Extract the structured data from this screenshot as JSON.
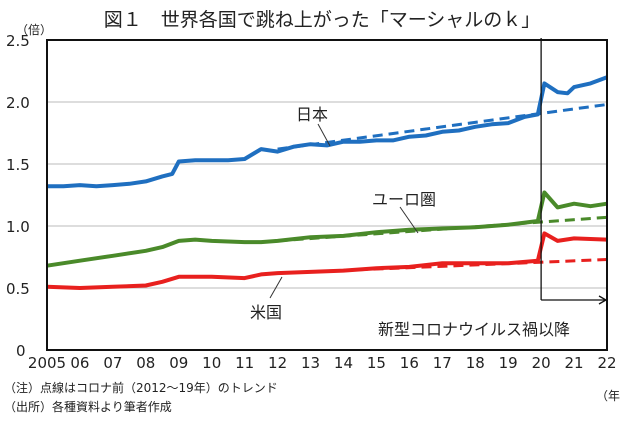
{
  "chart_data": {
    "type": "line",
    "title": "図１　世界各国で跳ね上がった「マーシャルのｋ」",
    "ylabel": "（倍）",
    "xlabel": "（年）",
    "ylim": [
      0,
      2.5
    ],
    "xlim": [
      2005,
      2022
    ],
    "yticks": [
      "0",
      "0.5",
      "1.0",
      "1.5",
      "2.0",
      "2.5"
    ],
    "yticks_values": [
      0,
      0.5,
      1.0,
      1.5,
      2.0,
      2.5
    ],
    "xticks": [
      "2005",
      "06",
      "07",
      "08",
      "09",
      "10",
      "11",
      "12",
      "13",
      "14",
      "15",
      "16",
      "17",
      "18",
      "19",
      "20",
      "21",
      "22"
    ],
    "grid": true,
    "annotation": "新型コロナウイルス禍以降",
    "annotation_x": 2020,
    "series": [
      {
        "name": "日本",
        "color": "#1f6fc0",
        "x": [
          2005,
          2005.5,
          2006,
          2006.5,
          2007,
          2007.5,
          2008,
          2008.5,
          2008.8,
          2009,
          2009.5,
          2010,
          2010.5,
          2011,
          2011.5,
          2012,
          2012.5,
          2013,
          2013.5,
          2014,
          2014.5,
          2015,
          2015.5,
          2016,
          2016.5,
          2017,
          2017.5,
          2018,
          2018.5,
          2019,
          2019.5,
          2019.9,
          2020.1,
          2020.5,
          2020.8,
          2021,
          2021.5,
          2022
        ],
        "y": [
          1.32,
          1.32,
          1.33,
          1.32,
          1.33,
          1.34,
          1.36,
          1.4,
          1.42,
          1.52,
          1.53,
          1.53,
          1.53,
          1.54,
          1.62,
          1.6,
          1.64,
          1.66,
          1.65,
          1.68,
          1.68,
          1.69,
          1.69,
          1.72,
          1.73,
          1.76,
          1.77,
          1.8,
          1.82,
          1.83,
          1.88,
          1.9,
          2.15,
          2.08,
          2.07,
          2.12,
          2.15,
          2.2
        ]
      },
      {
        "name": "ユーロ圏",
        "color": "#4a8a2a",
        "x": [
          2005,
          2006,
          2007,
          2008,
          2008.5,
          2009,
          2009.5,
          2010,
          2011,
          2011.5,
          2012,
          2013,
          2014,
          2015,
          2016,
          2017,
          2018,
          2019,
          2019.9,
          2020.1,
          2020.5,
          2021,
          2021.5,
          2022
        ],
        "y": [
          0.68,
          0.72,
          0.76,
          0.8,
          0.83,
          0.88,
          0.89,
          0.88,
          0.87,
          0.87,
          0.88,
          0.91,
          0.92,
          0.95,
          0.97,
          0.98,
          0.99,
          1.01,
          1.04,
          1.27,
          1.15,
          1.18,
          1.16,
          1.18
        ]
      },
      {
        "name": "米国",
        "color": "#e8201e",
        "x": [
          2005,
          2006,
          2007,
          2008,
          2008.5,
          2009,
          2010,
          2011,
          2011.5,
          2012,
          2013,
          2014,
          2015,
          2016,
          2017,
          2018,
          2019,
          2019.9,
          2020.1,
          2020.5,
          2021,
          2022
        ],
        "y": [
          0.51,
          0.5,
          0.51,
          0.52,
          0.55,
          0.59,
          0.59,
          0.58,
          0.61,
          0.62,
          0.63,
          0.64,
          0.66,
          0.67,
          0.7,
          0.7,
          0.7,
          0.72,
          0.94,
          0.88,
          0.9,
          0.89
        ]
      }
    ],
    "trends": [
      {
        "series": "日本",
        "x": [
          2012,
          2022
        ],
        "y": [
          1.62,
          1.98
        ]
      },
      {
        "series": "ユーロ圏",
        "x": [
          2012,
          2022
        ],
        "y": [
          0.88,
          1.07
        ]
      },
      {
        "series": "米国",
        "x": [
          2012,
          2022
        ],
        "y": [
          0.62,
          0.73
        ]
      }
    ]
  },
  "notes": {
    "note": "（注）点線はコロナ前（2012〜19年）のトレンド",
    "source": "（出所）各種資料より筆者作成"
  }
}
